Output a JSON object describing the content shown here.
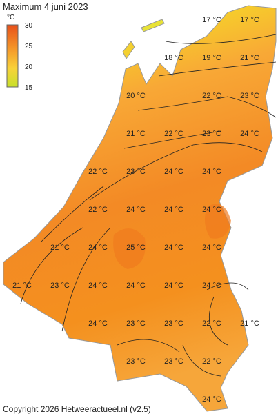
{
  "header": {
    "title": "Maximum 4 juni 2023"
  },
  "colorbar": {
    "unit": "°C",
    "ticks": [
      30,
      25,
      20,
      15
    ]
  },
  "labels": [
    "17 °C",
    "17 °C",
    "18 °C",
    "19 °C",
    "21 °C",
    "20 °C",
    "22 °C",
    "23 °C",
    "21 °C",
    "22 °C",
    "23 °C",
    "24 °C",
    "22 °C",
    "23 °C",
    "24 °C",
    "24 °C",
    "22 °C",
    "24 °C",
    "24 °C",
    "24 °C",
    "21 °C",
    "24 °C",
    "25 °C",
    "24 °C",
    "24 °C",
    "21 °C",
    "23 °C",
    "24 °C",
    "24 °C",
    "24 °C",
    "24 °C",
    "24 °C",
    "23 °C",
    "23 °C",
    "22 °C",
    "21 °C",
    "23 °C",
    "23 °C",
    "22 °C",
    "24 °C"
  ],
  "footer": {
    "copyright": "Copyright 2026 Hetweeractueel.nl (v2.5)"
  }
}
